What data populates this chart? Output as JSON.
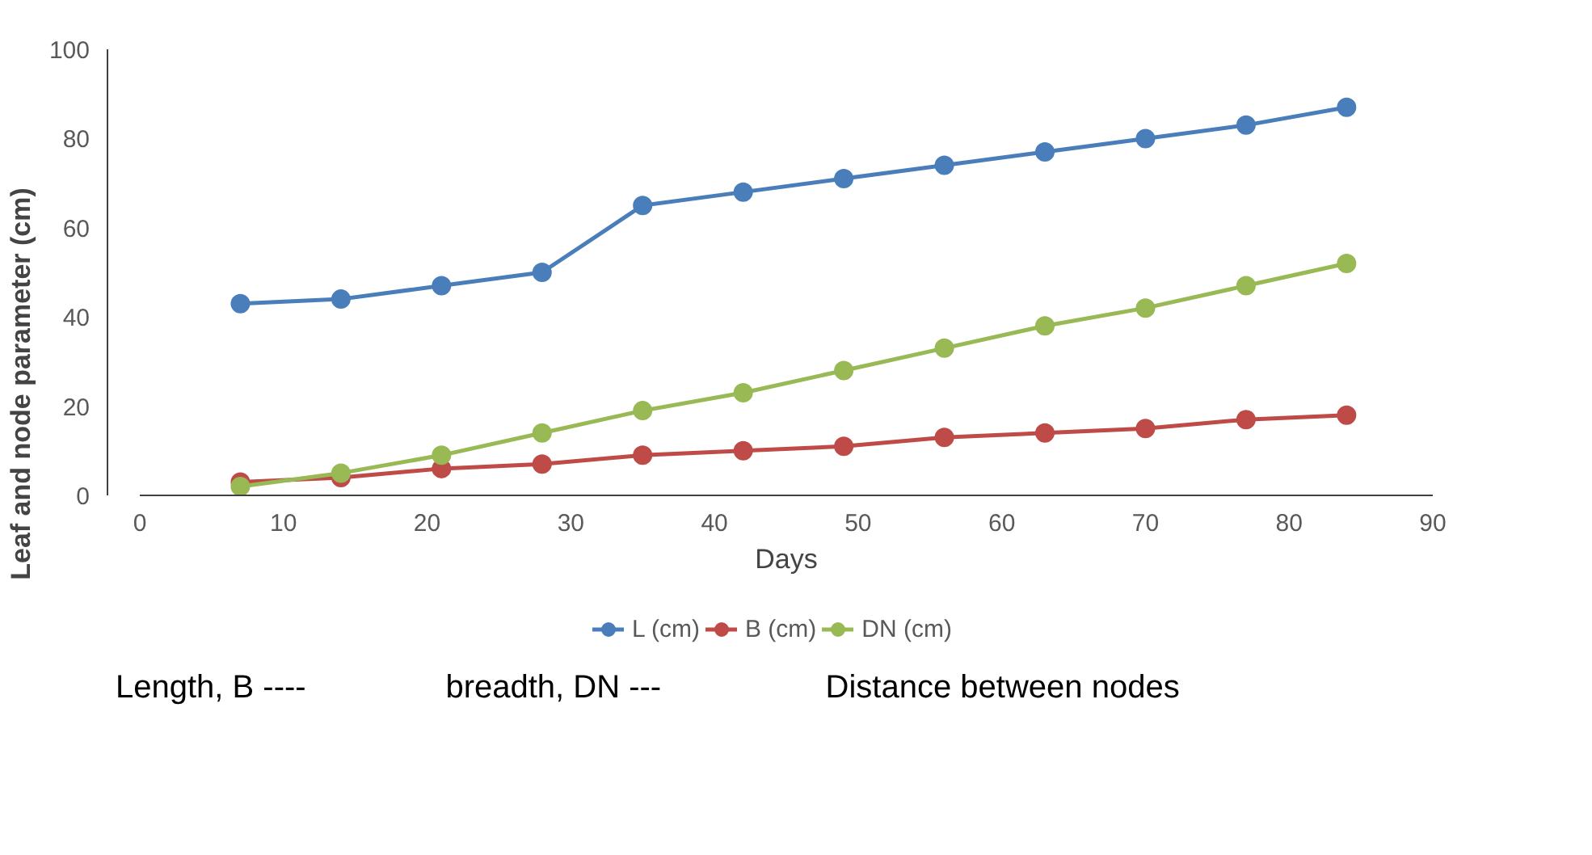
{
  "chart_data": {
    "type": "line",
    "xlabel": "Days",
    "ylabel": "Leaf and node parameter (cm)",
    "x": [
      7,
      14,
      21,
      28,
      35,
      42,
      49,
      56,
      63,
      70,
      77,
      84
    ],
    "series": [
      {
        "name": "L (cm)",
        "color": "#4a7ebb",
        "values": [
          43,
          44,
          47,
          50,
          65,
          68,
          71,
          74,
          77,
          80,
          83,
          87
        ]
      },
      {
        "name": "B (cm)",
        "color": "#be4b48",
        "values": [
          3,
          4,
          6,
          7,
          9,
          10,
          11,
          13,
          14,
          15,
          17,
          18
        ]
      },
      {
        "name": "DN (cm)",
        "color": "#98b954",
        "values": [
          2,
          5,
          9,
          14,
          19,
          23,
          28,
          33,
          38,
          42,
          47,
          52
        ]
      }
    ],
    "xlim": [
      0,
      90
    ],
    "xticks": [
      0,
      10,
      20,
      30,
      40,
      50,
      60,
      70,
      80,
      90
    ],
    "ylim": [
      0,
      100
    ],
    "yticks": [
      0,
      20,
      40,
      60,
      80,
      100
    ],
    "grid": false,
    "legend": "bottom",
    "marker": "circle",
    "line_style": "solid",
    "annotations": [
      "Length, B ----",
      "breadth,   DN ---",
      "Distance between nodes"
    ]
  }
}
